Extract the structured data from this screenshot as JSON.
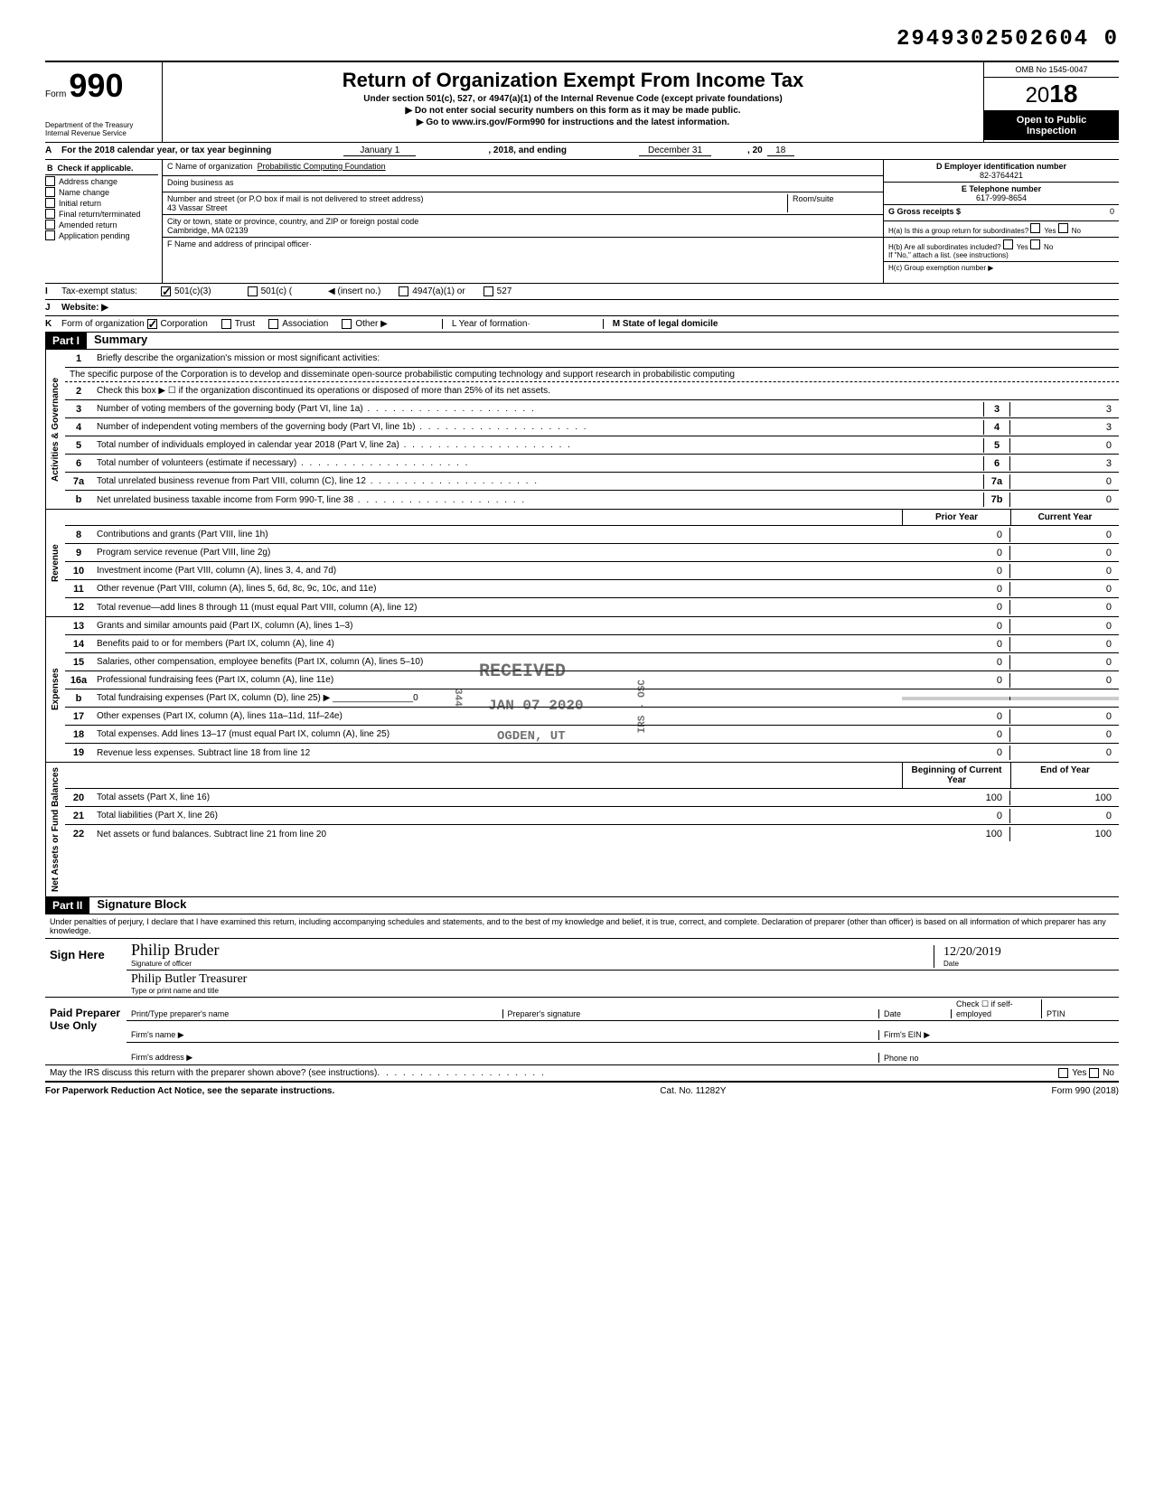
{
  "doc_id": "2949302502604 0",
  "header": {
    "form_prefix": "Form",
    "form_number": "990",
    "dept": "Department of the Treasury\nInternal Revenue Service",
    "title": "Return of Organization Exempt From Income Tax",
    "sub1": "Under section 501(c), 527, or 4947(a)(1) of the Internal Revenue Code (except private foundations)",
    "sub2": "▶ Do not enter social security numbers on this form as it may be made public.",
    "sub3": "▶ Go to www.irs.gov/Form990 for instructions and the latest information.",
    "omb": "OMB No  1545-0047",
    "year_outline": "20",
    "year_bold": "18",
    "open": "Open to Public",
    "inspection": "Inspection"
  },
  "row_a": {
    "label": "A",
    "text": "For the 2018 calendar year, or tax year beginning",
    "begin": "January 1",
    "mid": ", 2018, and ending",
    "end": "December 31",
    "yr_prefix": ", 20",
    "yr": "18"
  },
  "col_b": {
    "label": "B",
    "check_if": "Check if applicable.",
    "items": [
      {
        "label": "Address change",
        "checked": false
      },
      {
        "label": "Name change",
        "checked": false
      },
      {
        "label": "Initial return",
        "checked": false
      },
      {
        "label": "Final return/terminated",
        "checked": false
      },
      {
        "label": "Amended return",
        "checked": false
      },
      {
        "label": "Application pending",
        "checked": false
      }
    ]
  },
  "col_c": {
    "name_label": "C Name of organization",
    "name": "Probabilistic Computing Foundation",
    "dba_label": "Doing business as",
    "dba": "",
    "street_label": "Number and street (or P.O  box if mail is not delivered to street address)",
    "street": "43 Vassar Street",
    "room_label": "Room/suite",
    "room": "",
    "city_label": "City or town, state or province, country, and ZIP or foreign postal code",
    "city": "Cambridge, MA 02139",
    "officer_label": "F Name and address of principal officer·",
    "officer": ""
  },
  "col_de": {
    "d_label": "D Employer identification number",
    "d_val": "82-3764421",
    "e_label": "E Telephone number",
    "e_val": "617-999-8654",
    "g_label": "G Gross receipts $",
    "g_val": "0",
    "ha": "H(a) Is this a group return for subordinates?",
    "hb": "H(b) Are all subordinates included?",
    "hb_note": "If \"No,\" attach a list. (see instructions)",
    "hc": "H(c) Group exemption number ▶",
    "yes": "Yes",
    "no": "No"
  },
  "row_i": {
    "label": "I",
    "text": "Tax-exempt status:",
    "opts": [
      "501(c)(3)",
      "501(c) (",
      "◀ (insert no.)",
      "4947(a)(1) or",
      "527"
    ]
  },
  "row_j": {
    "label": "J",
    "text": "Website: ▶"
  },
  "row_k": {
    "label": "K",
    "text": "Form of organization",
    "opts": [
      "Corporation",
      "Trust",
      "Association",
      "Other ▶"
    ],
    "l_label": "L Year of formation·",
    "m_label": "M State of legal domicile"
  },
  "part1": {
    "num": "Part I",
    "title": "Summary",
    "groups": [
      {
        "vlabel": "Activities & Governance",
        "lines": [
          {
            "n": "1",
            "type": "mission"
          },
          {
            "n": "2",
            "text": "Check this box ▶ ☐ if the organization discontinued its operations or disposed of more than 25% of its net assets."
          },
          {
            "n": "3",
            "text": "Number of voting members of the governing body (Part VI, line 1a)",
            "box": "3",
            "cur": "3"
          },
          {
            "n": "4",
            "text": "Number of independent voting members of the governing body (Part VI, line 1b)",
            "box": "4",
            "cur": "3"
          },
          {
            "n": "5",
            "text": "Total number of individuals employed in calendar year 2018 (Part V, line 2a)",
            "box": "5",
            "cur": "0"
          },
          {
            "n": "6",
            "text": "Total number of volunteers (estimate if necessary)",
            "box": "6",
            "cur": "3"
          },
          {
            "n": "7a",
            "text": "Total unrelated business revenue from Part VIII, column (C), line 12",
            "box": "7a",
            "cur": "0"
          },
          {
            "n": "b",
            "text": "Net unrelated business taxable income from Form 990-T, line 38",
            "box": "7b",
            "cur": "0"
          }
        ],
        "mission_label": "Briefly describe the organization's mission or most significant activities:",
        "mission_text": "The specific purpose of the Corporation is to develop and disseminate open-source probabilistic computing technology and support research in probabilistic computing"
      },
      {
        "vlabel": "Revenue",
        "header_prior": "Prior Year",
        "header_cur": "Current Year",
        "lines": [
          {
            "n": "8",
            "text": "Contributions and grants (Part VIII, line 1h)",
            "prior": "0",
            "cur": "0"
          },
          {
            "n": "9",
            "text": "Program service revenue (Part VIII, line 2g)",
            "prior": "0",
            "cur": "0"
          },
          {
            "n": "10",
            "text": "Investment income (Part VIII, column (A), lines 3, 4, and 7d)",
            "prior": "0",
            "cur": "0"
          },
          {
            "n": "11",
            "text": "Other revenue (Part VIII, column (A), lines 5, 6d, 8c, 9c, 10c, and 11e)",
            "prior": "0",
            "cur": "0"
          },
          {
            "n": "12",
            "text": "Total revenue—add lines 8 through 11 (must equal Part VIII, column (A), line 12)",
            "prior": "0",
            "cur": "0"
          }
        ]
      },
      {
        "vlabel": "Expenses",
        "lines": [
          {
            "n": "13",
            "text": "Grants and similar amounts paid (Part IX, column (A), lines 1–3)",
            "prior": "0",
            "cur": "0"
          },
          {
            "n": "14",
            "text": "Benefits paid to or for members (Part IX, column (A), line 4)",
            "prior": "0",
            "cur": "0"
          },
          {
            "n": "15",
            "text": "Salaries, other compensation, employee benefits (Part IX, column (A), lines 5–10)",
            "prior": "0",
            "cur": "0"
          },
          {
            "n": "16a",
            "text": "Professional fundraising fees (Part IX, column (A), line 11e)",
            "prior": "0",
            "cur": "0"
          },
          {
            "n": "b",
            "text": "Total fundraising expenses (Part IX, column (D), line 25) ▶  ________________0",
            "shaded": true
          },
          {
            "n": "17",
            "text": "Other expenses (Part IX, column (A), lines 11a–11d, 11f–24e)",
            "prior": "0",
            "cur": "0"
          },
          {
            "n": "18",
            "text": "Total expenses. Add lines 13–17 (must equal Part IX, column (A), line 25)",
            "prior": "0",
            "cur": "0"
          },
          {
            "n": "19",
            "text": "Revenue less expenses. Subtract line 18 from line 12",
            "prior": "0",
            "cur": "0"
          }
        ]
      },
      {
        "vlabel": "Net Assets or Fund Balances",
        "header_prior": "Beginning of Current Year",
        "header_cur": "End of Year",
        "lines": [
          {
            "n": "20",
            "text": "Total assets (Part X, line 16)",
            "prior": "100",
            "cur": "100"
          },
          {
            "n": "21",
            "text": "Total liabilities (Part X, line 26)",
            "prior": "0",
            "cur": "0"
          },
          {
            "n": "22",
            "text": "Net assets or fund balances. Subtract line 21 from line 20",
            "prior": "100",
            "cur": "100"
          }
        ]
      }
    ]
  },
  "part2": {
    "num": "Part II",
    "title": "Signature Block",
    "perjury": "Under penalties of perjury, I declare that I have examined this return, including accompanying schedules and statements, and to the best of my knowledge  and belief, it is true, correct, and complete. Declaration of preparer (other than officer) is based on all information of which preparer has any knowledge."
  },
  "sign": {
    "label": "Sign Here",
    "sig": "Philip Bruder",
    "sig_caption": "Signature of officer",
    "name": "Philip Butler  Treasurer",
    "name_caption": "Type or print name and title",
    "date_label": "Date",
    "date": "12/20/2019"
  },
  "preparer": {
    "label": "Paid Preparer Use Only",
    "name_label": "Print/Type preparer's name",
    "sig_label": "Preparer's signature",
    "date_label": "Date",
    "check_label": "Check ☐ if self-employed",
    "ptin_label": "PTIN",
    "firm_name": "Firm's name    ▶",
    "firm_addr": "Firm's address ▶",
    "firm_ein": "Firm's EIN ▶",
    "phone": "Phone no"
  },
  "footer": {
    "discuss": "May the IRS discuss this return with the preparer shown above? (see instructions)",
    "paperwork": "For Paperwork Reduction Act Notice, see the separate instructions.",
    "cat": "Cat. No. 11282Y",
    "form": "Form 990 (2018)"
  },
  "stamps": {
    "received": "RECEIVED",
    "date": "JAN 07 2020",
    "ogden": "OGDEN, UT",
    "code": "344",
    "irs": "IRS - OSC"
  }
}
